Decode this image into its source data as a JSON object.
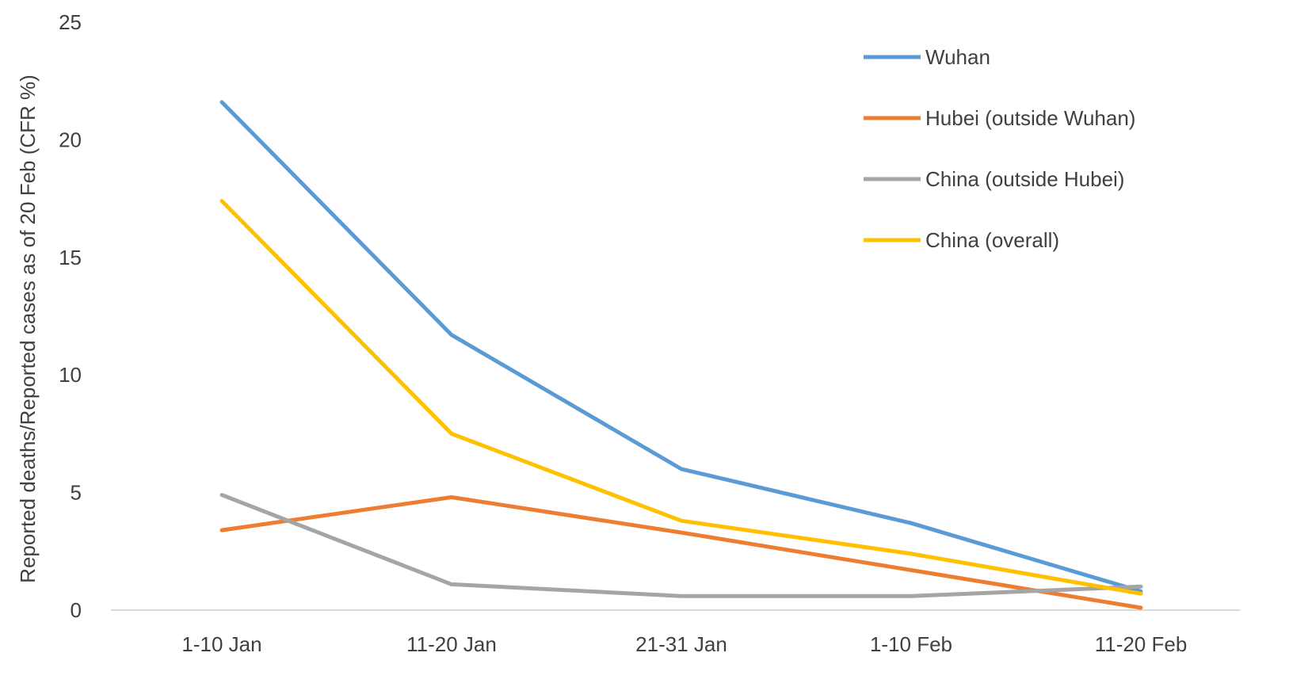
{
  "chart_data": {
    "type": "line",
    "title": "",
    "xlabel": "",
    "ylabel": "Reported  deaths/Reported  cases as of 20 Feb (CFR %)",
    "categories": [
      "1-10 Jan",
      "11-20 Jan",
      "21-31 Jan",
      "1-10 Feb",
      "11-20 Feb"
    ],
    "ylim": [
      0,
      25
    ],
    "yticks": [
      0,
      5,
      10,
      15,
      20,
      25
    ],
    "grid": false,
    "legend_position": "top-right",
    "series": [
      {
        "name": "Wuhan",
        "color": "#5B9BD5",
        "values": [
          21.6,
          11.7,
          6.0,
          3.7,
          0.8
        ]
      },
      {
        "name": "Hubei (outside Wuhan)",
        "color": "#ED7D31",
        "values": [
          3.4,
          4.8,
          3.3,
          1.7,
          0.1
        ]
      },
      {
        "name": "China (outside Hubei)",
        "color": "#A5A5A5",
        "values": [
          4.9,
          1.1,
          0.6,
          0.6,
          1.0
        ]
      },
      {
        "name": "China (overall)",
        "color": "#FFC000",
        "values": [
          17.4,
          7.5,
          3.8,
          2.4,
          0.7
        ]
      }
    ]
  }
}
